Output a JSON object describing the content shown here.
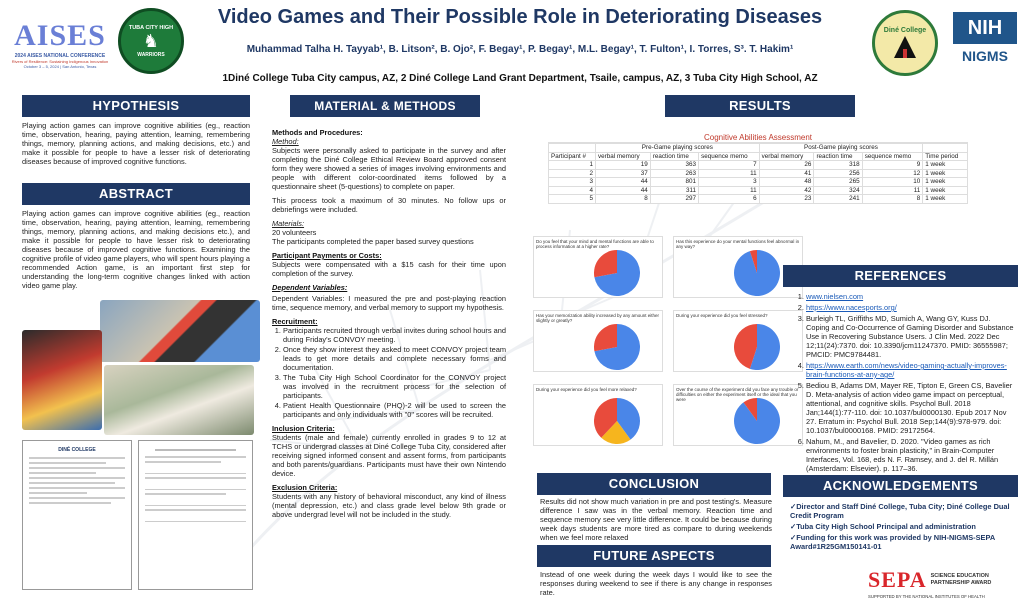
{
  "header": {
    "title": "Video Games and Their Possible Role in Deteriorating Diseases",
    "authors": "Muhammad Talha H. Tayyab¹, B. Litson², B. Ojo², F. Begay¹, P. Begay¹, M.L. Begay¹, T. Fulton¹, I. Torres, S³. T. Hakim¹",
    "affiliations": "1Diné College Tuba City campus, AZ, 2 Diné College Land Grant Department, Tsaile, campus, AZ, 3 Tuba City High School, AZ"
  },
  "logos": {
    "aises": "AISES",
    "aises_sub": "2024 AISES NATIONAL CONFERENCE",
    "aises_sub2": "Rivers of Resilience: Sustaining Indigenous Innovation",
    "aises_date": "October 3 – 5, 2024 | San Antonio, Texas",
    "tchs": "TUBA CITY HIGH",
    "tchs_sub": "WARRIORS",
    "dine": "Diné College",
    "nih": "NIH",
    "nigms": "NIGMS"
  },
  "hypothesis": {
    "heading": "HYPOTHESIS",
    "text": "Playing action games can improve cognitive abilities (eg., reaction time, observation, hearing, paying attention, learning, remembering things, memory, planning actions, and making decisions, etc.) and make it possible for people to have a lesser risk of deteriorating diseases because of improved cognitive functions."
  },
  "abstract": {
    "heading": "ABSTRACT",
    "text": "Playing action games can improve cognitive abilities (eg., reaction time, observation, hearing, paying attention, learning, remembering things, memory, planning actions, and making decisions etc.), and make it possible for people to have lesser risk to deteriorating diseases because of improved cognitive functions. Examining the cognitive profile of video game players, who will spent hours playing a recommended Action game, is an important first step for understanding the long-term cognitive changes linked with action video game play."
  },
  "documents": {
    "doc2_title": "DINÉ COLLEGE"
  },
  "methods": {
    "heading": "MATERIAL & METHODS",
    "proc_title": "Methods and Procedures:",
    "method_label": "Method:",
    "p1": "Subjects were personally asked to participate in the survey and after completing the Diné College Ethical Review Board approved consent form they were showed a series of images involving environments and people with different color-coordinated items followed by a questionnaire sheet (5-questions) to complete on paper.",
    "p2": "This process took a maximum of 30 minutes. No follow ups or debriefings were included.",
    "materials_label": "Materials:",
    "materials_1": "20 volunteers",
    "materials_2": "The participants completed the paper based survey questions",
    "payment_label": "Participant Payments or Costs:",
    "payment_text": "Subjects were compensated with a $15 cash for their time upon completion of the survey.",
    "dep_label": "Dependent Variables:",
    "dep_text": "Dependent Variables: I measured the pre and post-playing reaction time, sequence memory, and verbal memory to support my hypothesis.",
    "recruit_label": "Recruitment:",
    "recruit_items": [
      "Participants recruited through verbal invites during school hours and during Friday's CONVOY meeting.",
      "Once they show interest they asked to meet CONVOY project team leads to get more details and complete necessary forms and documentation.",
      "The Tuba City High School Coordinator for the CONVOY project was involved in the recruitment process for the selection of participants.",
      "Patient Health Questionnaire (PHQ)-2 will be used to screen the participants and only individuals with \"0\" scores will be recruited."
    ],
    "incl_label": "Inclusion Criteria:",
    "incl_text": "Students (male and female) currently enrolled in grades 9 to 12 at TCHS or undergrad classes at Diné College Tuba City, considered after receiving signed informed consent and assent forms, from participants and both parents/guardians. Participants must have their own Nintendo device.",
    "excl_label": "Exclusion Criteria:",
    "excl_text": "Students with any history of behavioral misconduct, any kind of illness (mental depression, etc.) and class grade level below 9th grade or above undergrad level will not be included in the study."
  },
  "results": {
    "heading": "RESULTS",
    "table_title": "Cognitive Abilities Assessment",
    "pre_label": "Pre-Game playing scores",
    "post_label": "Post-Game playing scores",
    "col_participant": "Participant #",
    "col_verbal": "verbal memory",
    "col_reaction": "reaction time",
    "col_sequence": "sequence memo",
    "col_time": "Time period",
    "rows": [
      {
        "p": "1",
        "v1": "19",
        "r1": "363",
        "s1": "7",
        "v2": "26",
        "r2": "318",
        "s2": "9",
        "t": "1 week"
      },
      {
        "p": "2",
        "v1": "37",
        "r1": "263",
        "s1": "11",
        "v2": "41",
        "r2": "256",
        "s2": "12",
        "t": "1 week"
      },
      {
        "p": "3",
        "v1": "44",
        "r1": "801",
        "s1": "3",
        "v2": "48",
        "r2": "265",
        "s2": "10",
        "t": "1 week"
      },
      {
        "p": "4",
        "v1": "44",
        "r1": "311",
        "s1": "11",
        "v2": "42",
        "r2": "324",
        "s2": "11",
        "t": "1 week"
      },
      {
        "p": "5",
        "v1": "8",
        "r1": "297",
        "s1": "6",
        "v2": "23",
        "r2": "241",
        "s2": "8",
        "t": "1 week"
      }
    ],
    "pies": [
      {
        "q": "Do you feel that your mind and mental functions are able to process information at a higher rate?",
        "slices": [
          0.72,
          0.28
        ],
        "colors": [
          "#4a86e8",
          "#e84b3c"
        ]
      },
      {
        "q": "Has this experience do your mental functions feel abnormal in any way?",
        "slices": [
          0.95,
          0.05
        ],
        "colors": [
          "#4a86e8",
          "#e84b3c"
        ]
      },
      {
        "q": "Has your memorization ability increased by any amount either slightly or greatly?",
        "slices": [
          0.72,
          0.28
        ],
        "colors": [
          "#4a86e8",
          "#e84b3c"
        ]
      },
      {
        "q": "During your experience did you feel stressed?",
        "slices": [
          0.55,
          0.45
        ],
        "colors": [
          "#4a86e8",
          "#e84b3c"
        ]
      },
      {
        "q": "During your experience did you feel more relaxed?",
        "slices": [
          0.4,
          0.22,
          0.38
        ],
        "colors": [
          "#4a86e8",
          "#f6b51e",
          "#e84b3c"
        ]
      },
      {
        "q": "Over the course of the experiment did you face any trouble or difficulties on either the experiment itself or the ideal that you were",
        "slices": [
          0.9,
          0.1
        ],
        "colors": [
          "#4a86e8",
          "#e84b3c"
        ]
      }
    ]
  },
  "conclusion": {
    "heading": "CONCLUSION",
    "text": "Results did not show much variation in pre and post testing's. Measure difference I saw was in the verbal memory. Reaction time and sequence memory see very little difference. It could be because during week days students are more tired as compare to during weekends when we feel more relaxed"
  },
  "future": {
    "heading": "FUTURE ASPECTS",
    "text": "Instead of one week during the week days I would like to see the responses during weekend to see if there is any change in responses rate."
  },
  "references": {
    "heading": "REFERENCES",
    "items": [
      "www.nielsen.com",
      "https://www.nacesports.org/",
      "Burleigh TL, Griffiths MD, Sumich A, Wang GY, Kuss DJ. Coping and Co-Occurrence of Gaming Disorder and Substance Use in Recovering Substance Users. J Clin Med. 2022 Dec 12;11(24):7370. doi: 10.3390/jcm11247370. PMID: 36555987; PMCID: PMC9784481.",
      "https://www.earth.com/news/video-gaming-actually-improves-brain-functions-at-any-age/",
      "Bediou B, Adams DM, Mayer RE, Tipton E, Green CS, Bavelier D. Meta-analysis of action video game impact on perceptual, attentional, and cognitive skills. Psychol Bull. 2018 Jan;144(1):77-110. doi: 10.1037/bul0000130. Epub 2017 Nov 27. Erratum in: Psychol Bull. 2018 Sep;144(9):978-979. doi: 10.1037/bul0000168. PMID: 29172564.",
      "Nahum, M., and Bavelier, D. 2020. \"Video games as rich environments to foster brain plasticity,\" in Brain-Computer Interfaces, Vol. 168, eds N. F. Ramsey, and J. del R. Millán (Amsterdam: Elsevier). p. 117–36."
    ]
  },
  "acknowledgements": {
    "heading": "ACKNOWLEDGEMENTS",
    "items": [
      "✓Director and Staff Diné College, Tuba City; Diné College Dual Credit Program",
      "✓Tuba City High School Principal and administration",
      "✓Funding for this work was provided by NIH-NIGMS-SEPA Award#1R25GM150141-01"
    ],
    "sepa": "SEPA",
    "sepa_sub1": "SCIENCE EDUCATION",
    "sepa_sub2": "PARTNERSHIP AWARD",
    "sepa_sub3": "SUPPORTED BY THE NATIONAL INSTITUTES OF HEALTH"
  },
  "colors": {
    "navy": "#1f3864",
    "pie_blue": "#4a86e8",
    "pie_red": "#e84b3c",
    "pie_yellow": "#f6b51e"
  }
}
